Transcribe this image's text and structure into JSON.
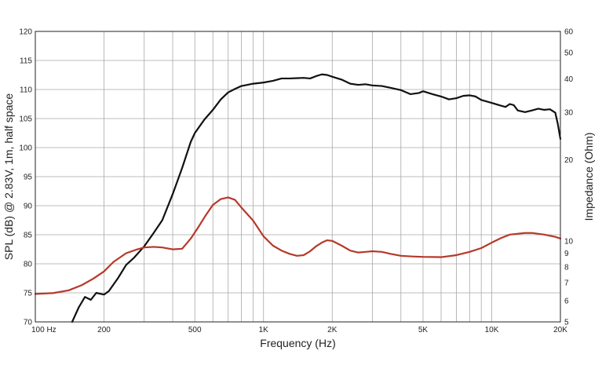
{
  "chart_data": {
    "type": "line",
    "title": "",
    "xlabel": "Frequency (Hz)",
    "ylabel": "SPL (dB) @ 2.83V, 1m, half space",
    "y2label": "Impedance (Ohm)",
    "x_scale": "log",
    "xlim": [
      100,
      20000
    ],
    "ylim": [
      70,
      120
    ],
    "y2_scale": "log",
    "y2lim": [
      5,
      60
    ],
    "grid": true,
    "legend": "none",
    "x_tick_labels": [
      {
        "value": 100,
        "label": "100  Hz"
      },
      {
        "value": 200,
        "label": "200"
      },
      {
        "value": 500,
        "label": "500"
      },
      {
        "value": 1000,
        "label": "1K"
      },
      {
        "value": 2000,
        "label": "2K"
      },
      {
        "value": 5000,
        "label": "5K"
      },
      {
        "value": 10000,
        "label": "10K"
      },
      {
        "value": 20000,
        "label": "20K"
      }
    ],
    "y_ticks": [
      70,
      75,
      80,
      85,
      90,
      95,
      100,
      105,
      110,
      115,
      120
    ],
    "y2_ticks": [
      5,
      6,
      7,
      8,
      9,
      10,
      20,
      30,
      40,
      50,
      60
    ],
    "series": [
      {
        "name": "",
        "axis": "left",
        "color": "#111111",
        "points": [
          [
            145,
            70
          ],
          [
            155,
            72.5
          ],
          [
            165,
            74.3
          ],
          [
            175,
            73.8
          ],
          [
            185,
            75
          ],
          [
            200,
            74.7
          ],
          [
            210,
            75.3
          ],
          [
            230,
            77.5
          ],
          [
            250,
            79.8
          ],
          [
            270,
            81
          ],
          [
            300,
            83
          ],
          [
            330,
            85.3
          ],
          [
            360,
            87.5
          ],
          [
            400,
            92
          ],
          [
            440,
            96.5
          ],
          [
            480,
            101
          ],
          [
            500,
            102.5
          ],
          [
            550,
            104.8
          ],
          [
            600,
            106.5
          ],
          [
            650,
            108.3
          ],
          [
            700,
            109.5
          ],
          [
            750,
            110.1
          ],
          [
            800,
            110.6
          ],
          [
            850,
            110.8
          ],
          [
            900,
            111
          ],
          [
            1000,
            111.2
          ],
          [
            1100,
            111.5
          ],
          [
            1200,
            111.9
          ],
          [
            1300,
            111.9
          ],
          [
            1500,
            112
          ],
          [
            1600,
            111.9
          ],
          [
            1700,
            112.3
          ],
          [
            1800,
            112.6
          ],
          [
            1900,
            112.5
          ],
          [
            2000,
            112.2
          ],
          [
            2200,
            111.7
          ],
          [
            2400,
            111
          ],
          [
            2600,
            110.8
          ],
          [
            2800,
            110.9
          ],
          [
            3000,
            110.7
          ],
          [
            3300,
            110.6
          ],
          [
            3600,
            110.3
          ],
          [
            4000,
            109.9
          ],
          [
            4400,
            109.2
          ],
          [
            4800,
            109.4
          ],
          [
            5000,
            109.7
          ],
          [
            5500,
            109.2
          ],
          [
            6000,
            108.8
          ],
          [
            6500,
            108.3
          ],
          [
            7000,
            108.5
          ],
          [
            7500,
            108.9
          ],
          [
            8000,
            109
          ],
          [
            8500,
            108.8
          ],
          [
            9000,
            108.2
          ],
          [
            10000,
            107.7
          ],
          [
            11000,
            107.2
          ],
          [
            11500,
            107
          ],
          [
            12000,
            107.5
          ],
          [
            12500,
            107.3
          ],
          [
            13000,
            106.4
          ],
          [
            14000,
            106.1
          ],
          [
            15000,
            106.4
          ],
          [
            16000,
            106.7
          ],
          [
            17000,
            106.5
          ],
          [
            18000,
            106.6
          ],
          [
            19000,
            106
          ],
          [
            19500,
            104
          ],
          [
            20000,
            101.5
          ]
        ]
      },
      {
        "name": "",
        "axis": "right",
        "color": "#b5392a",
        "points": [
          [
            100,
            6.35
          ],
          [
            120,
            6.4
          ],
          [
            140,
            6.55
          ],
          [
            160,
            6.85
          ],
          [
            180,
            7.25
          ],
          [
            200,
            7.7
          ],
          [
            220,
            8.35
          ],
          [
            250,
            9.0
          ],
          [
            280,
            9.3
          ],
          [
            300,
            9.45
          ],
          [
            330,
            9.5
          ],
          [
            360,
            9.45
          ],
          [
            400,
            9.3
          ],
          [
            440,
            9.35
          ],
          [
            480,
            10.2
          ],
          [
            520,
            11.3
          ],
          [
            560,
            12.5
          ],
          [
            600,
            13.6
          ],
          [
            650,
            14.3
          ],
          [
            700,
            14.5
          ],
          [
            750,
            14.2
          ],
          [
            800,
            13.3
          ],
          [
            900,
            11.9
          ],
          [
            1000,
            10.4
          ],
          [
            1100,
            9.6
          ],
          [
            1200,
            9.2
          ],
          [
            1300,
            8.95
          ],
          [
            1400,
            8.8
          ],
          [
            1500,
            8.85
          ],
          [
            1600,
            9.15
          ],
          [
            1700,
            9.55
          ],
          [
            1800,
            9.85
          ],
          [
            1900,
            10.05
          ],
          [
            2000,
            10.0
          ],
          [
            2200,
            9.6
          ],
          [
            2400,
            9.2
          ],
          [
            2600,
            9.05
          ],
          [
            2800,
            9.1
          ],
          [
            3000,
            9.15
          ],
          [
            3300,
            9.1
          ],
          [
            3600,
            8.95
          ],
          [
            4000,
            8.8
          ],
          [
            4500,
            8.75
          ],
          [
            5000,
            8.72
          ],
          [
            6000,
            8.7
          ],
          [
            7000,
            8.85
          ],
          [
            8000,
            9.1
          ],
          [
            9000,
            9.4
          ],
          [
            10000,
            9.85
          ],
          [
            11000,
            10.25
          ],
          [
            12000,
            10.55
          ],
          [
            14000,
            10.7
          ],
          [
            15000,
            10.7
          ],
          [
            17000,
            10.55
          ],
          [
            19000,
            10.35
          ],
          [
            20000,
            10.2
          ]
        ]
      }
    ]
  }
}
